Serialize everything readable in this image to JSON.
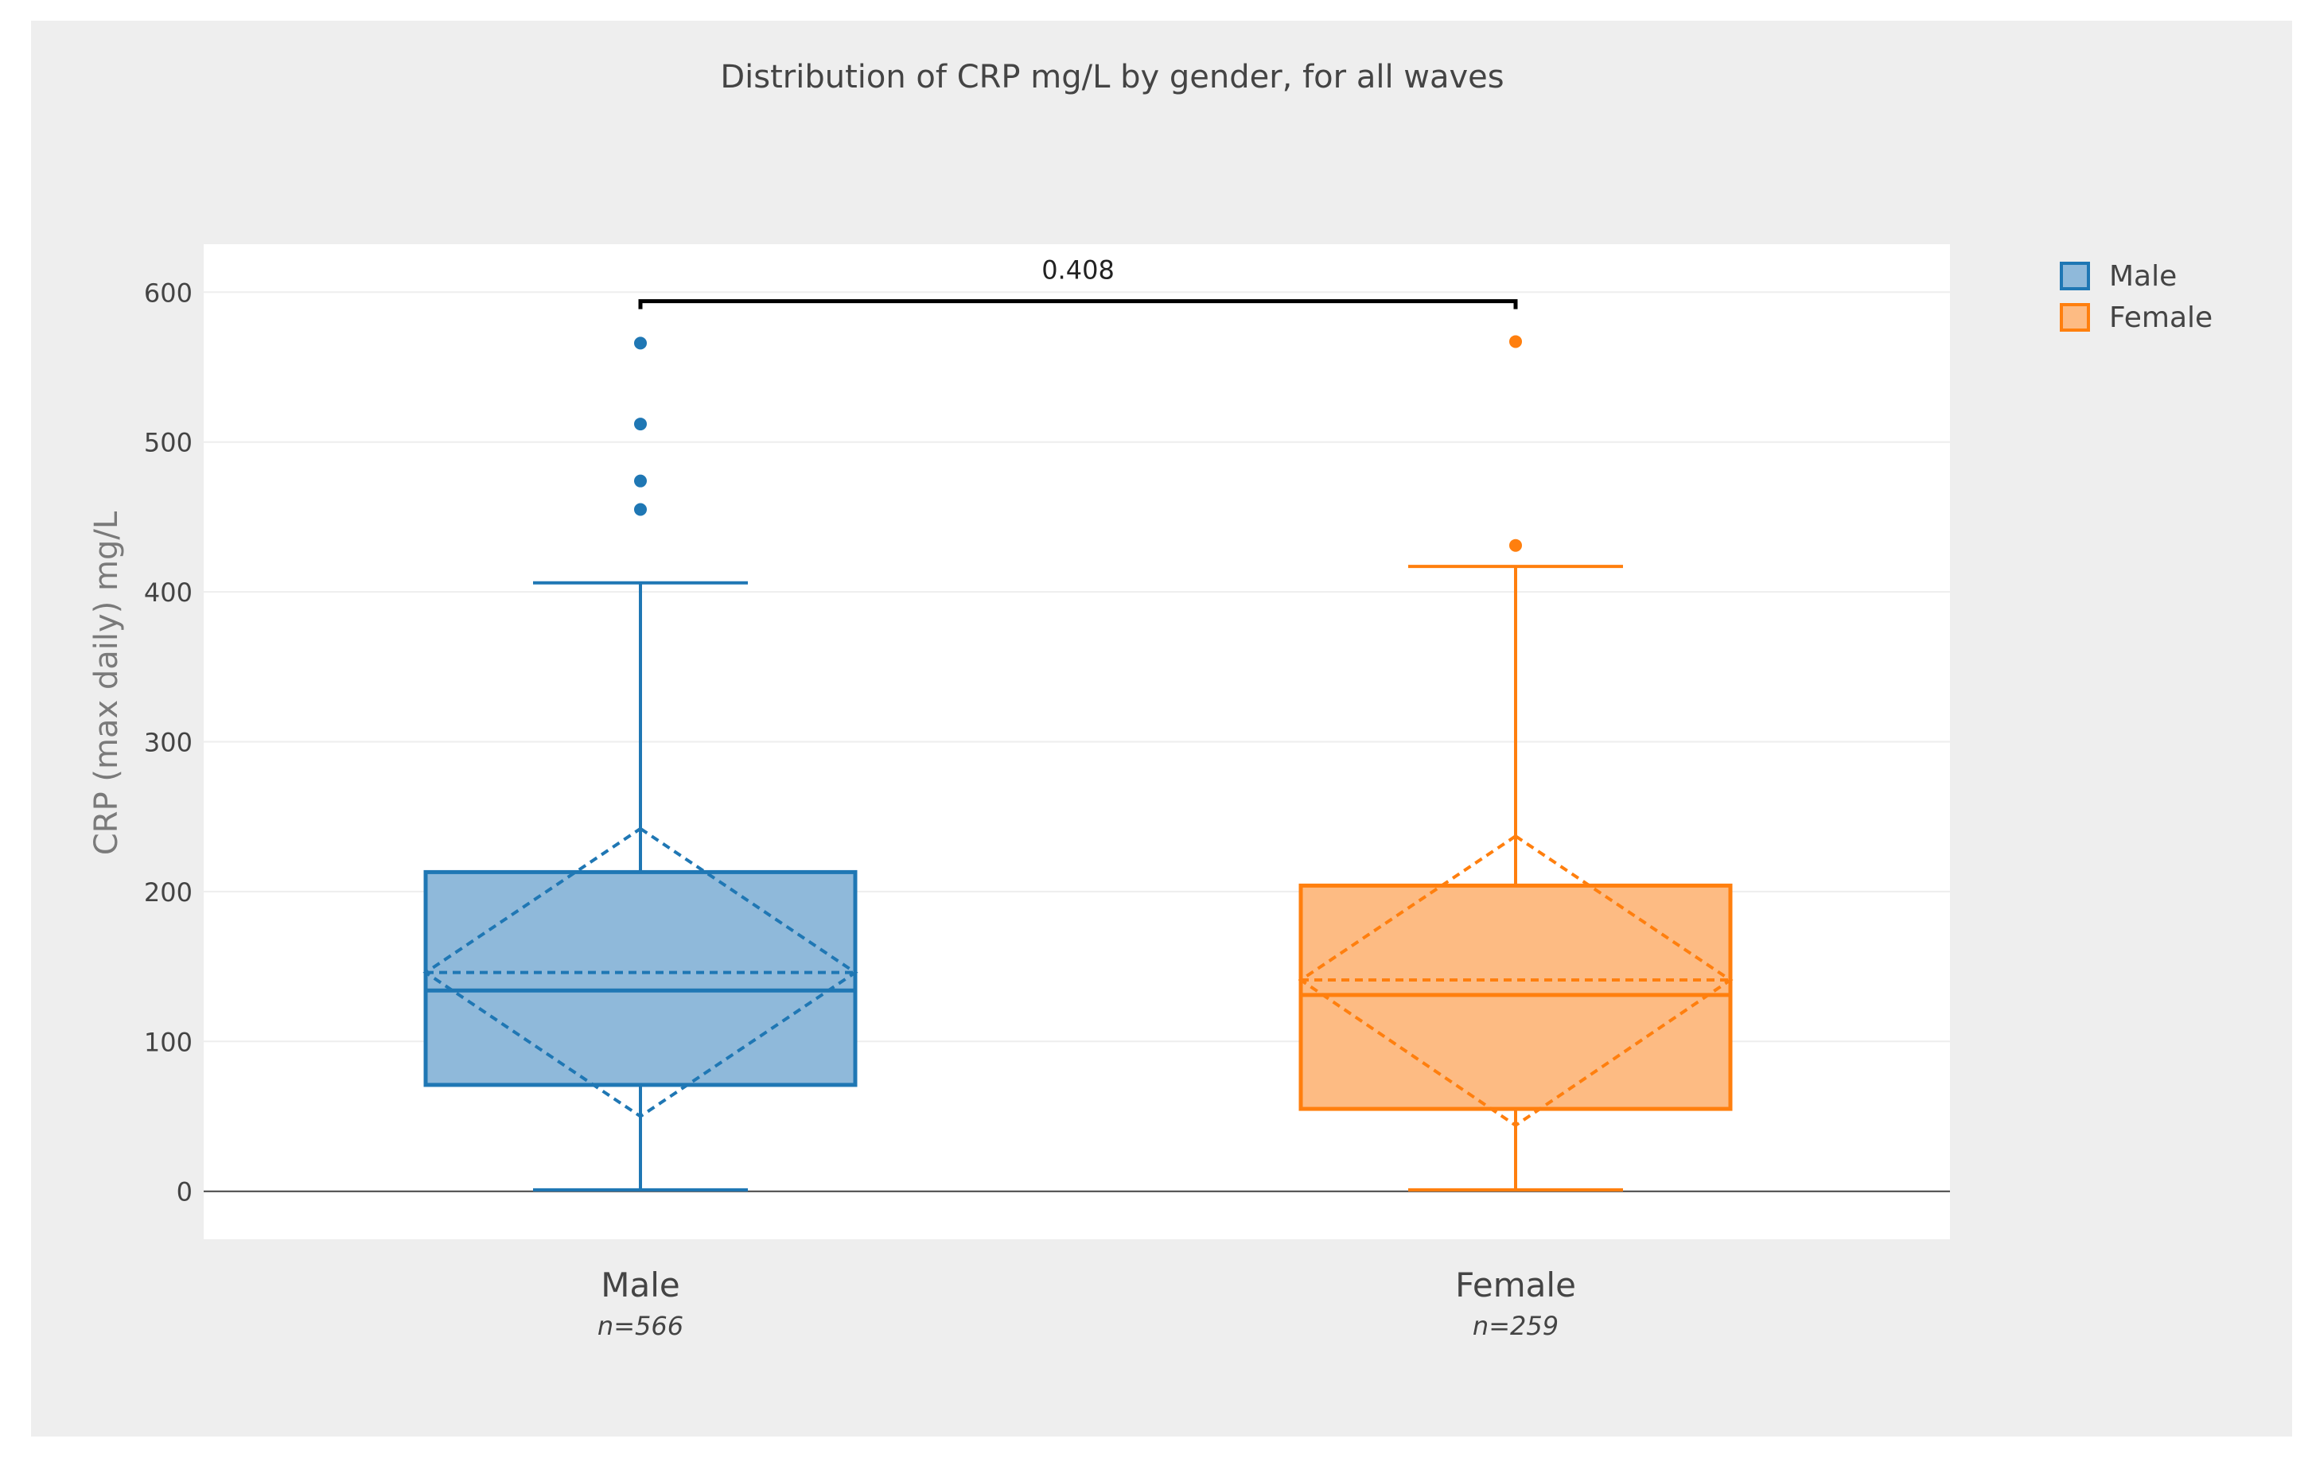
{
  "chart_data": {
    "type": "box",
    "title": "Distribution of CRP mg/L by gender, for all waves",
    "xlabel": "",
    "ylabel": "CRP (max daily) mg/L",
    "ylim": [
      -32,
      632
    ],
    "yticks": [
      0,
      100,
      200,
      300,
      400,
      500,
      600
    ],
    "grid": true,
    "legend_position": "top-right",
    "significance": {
      "label": "0.408",
      "between": [
        "Male",
        "Female"
      ],
      "y": 594
    },
    "series": [
      {
        "name": "Male",
        "category": "Male",
        "n_label": "n=566",
        "color": "#1f77b4",
        "fill": "#8fb9da",
        "min": 1,
        "q1": 71,
        "median": 134,
        "q3": 213,
        "upper_fence": 406,
        "mean": 146,
        "mean_minus_sd": 50,
        "mean_plus_sd": 242,
        "outliers": [
          455,
          474,
          512,
          566
        ]
      },
      {
        "name": "Female",
        "category": "Female",
        "n_label": "n=259",
        "color": "#ff7f0e",
        "fill": "#fdbb83",
        "min": 1,
        "q1": 55,
        "median": 131,
        "q3": 204,
        "upper_fence": 417,
        "mean": 141,
        "mean_minus_sd": 44,
        "mean_plus_sd": 237,
        "outliers": [
          431,
          567
        ]
      }
    ]
  }
}
